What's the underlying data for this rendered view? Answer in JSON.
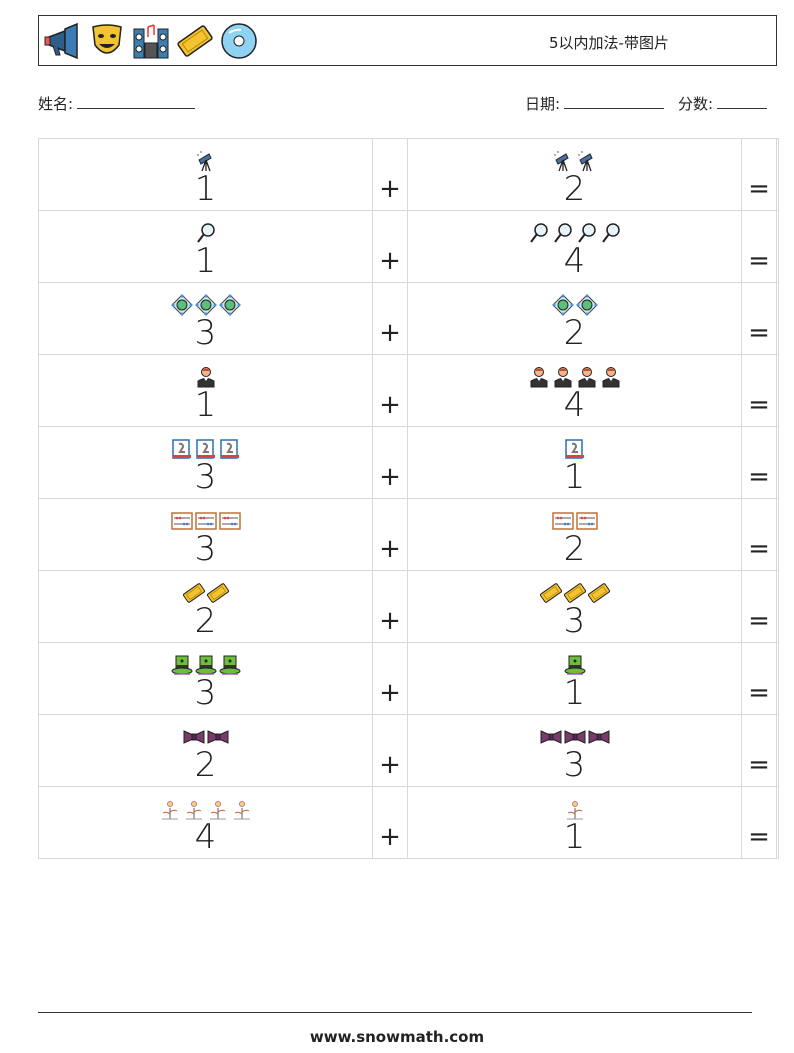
{
  "header": {
    "title": "5以内加法-带图片",
    "icons": [
      "megaphone-icon",
      "theater-mask-icon",
      "speakers-icon",
      "cinema-ticket-icon",
      "cd-disc-icon"
    ]
  },
  "info": {
    "name_label": "姓名:",
    "date_label": "日期:",
    "score_label": "分数:"
  },
  "operators": {
    "plus": "+",
    "equals": "="
  },
  "rows": [
    {
      "a": "1",
      "a_icon": "telescope-icon",
      "b": "2",
      "b_icon": "telescope-icon"
    },
    {
      "a": "1",
      "a_icon": "magnifier-icon",
      "b": "4",
      "b_icon": "magnifier-icon"
    },
    {
      "a": "3",
      "a_icon": "gem-frame-icon",
      "b": "2",
      "b_icon": "gem-frame-icon"
    },
    {
      "a": "1",
      "a_icon": "waiter-icon",
      "b": "4",
      "b_icon": "waiter-icon"
    },
    {
      "a": "3",
      "a_icon": "award-card-icon",
      "b": "1",
      "b_icon": "award-card-icon"
    },
    {
      "a": "3",
      "a_icon": "abacus-icon",
      "b": "2",
      "b_icon": "abacus-icon"
    },
    {
      "a": "2",
      "a_icon": "ticket-icon",
      "b": "3",
      "b_icon": "ticket-icon"
    },
    {
      "a": "3",
      "a_icon": "magic-hat-icon",
      "b": "1",
      "b_icon": "magic-hat-icon"
    },
    {
      "a": "2",
      "a_icon": "bow-tie-icon",
      "b": "3",
      "b_icon": "bow-tie-icon"
    },
    {
      "a": "4",
      "a_icon": "flower-sprout-icon",
      "b": "1",
      "b_icon": "flower-sprout-icon"
    }
  ],
  "footer": {
    "url": "www.snowmath.com"
  }
}
